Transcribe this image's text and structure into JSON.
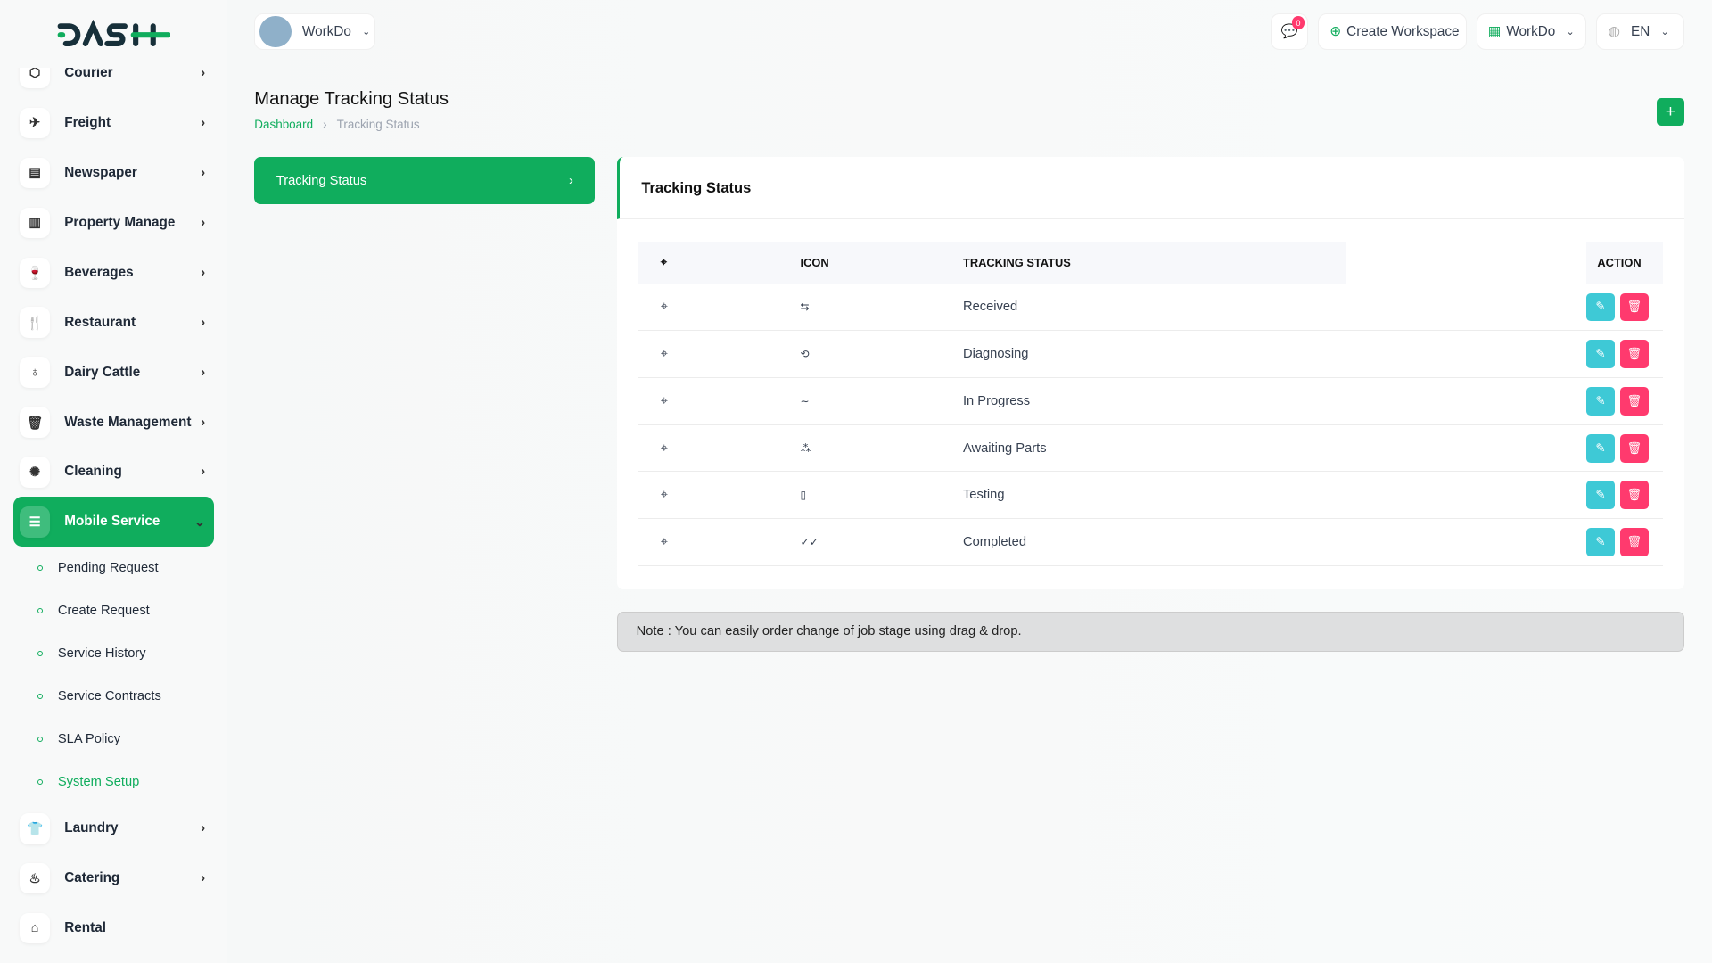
{
  "brand": {
    "logo": "DASH",
    "accent": "#10ad5d"
  },
  "header": {
    "workspace": "WorkDo",
    "notifications": "0",
    "create_workspace": "Create Workspace",
    "company": "WorkDo",
    "language": "EN"
  },
  "sidebar": {
    "items": [
      {
        "label": "Courier",
        "icon": "box-icon"
      },
      {
        "label": "Freight",
        "icon": "plane-icon"
      },
      {
        "label": "Newspaper",
        "icon": "newspaper-icon"
      },
      {
        "label": "Property Manage",
        "icon": "building-icon"
      },
      {
        "label": "Beverages",
        "icon": "glass-icon"
      },
      {
        "label": "Restaurant",
        "icon": "utensils-icon"
      },
      {
        "label": "Dairy Cattle",
        "icon": "bottle-icon"
      },
      {
        "label": "Waste Management",
        "icon": "trash-icon"
      },
      {
        "label": "Cleaning",
        "icon": "sparkle-icon"
      },
      {
        "label": "Mobile Service",
        "icon": "menu-icon",
        "active": true
      }
    ],
    "subitems": [
      "Pending Request",
      "Create Request",
      "Service History",
      "Service Contracts",
      "SLA Policy",
      "System Setup"
    ],
    "after": [
      {
        "label": "Laundry",
        "icon": "shirt-icon"
      },
      {
        "label": "Catering",
        "icon": "dish-icon"
      },
      {
        "label": "Rental",
        "icon": "home-icon"
      }
    ]
  },
  "page": {
    "title": "Manage Tracking Status",
    "breadcrumb": [
      "Dashboard",
      "Tracking Status"
    ],
    "tab": "Tracking Status"
  },
  "card": {
    "title": "Tracking Status",
    "columns": [
      "ICON",
      "TRACKING STATUS",
      "ACTION"
    ],
    "rows": [
      {
        "icon": "⇆",
        "status": "Received"
      },
      {
        "icon": "⟲",
        "status": "Diagnosing"
      },
      {
        "icon": "∼",
        "status": "In Progress"
      },
      {
        "icon": "⁂",
        "status": "Awaiting Parts"
      },
      {
        "icon": "▯",
        "status": "Testing"
      },
      {
        "icon": "✓✓",
        "status": "Completed"
      }
    ]
  },
  "note": "Note : You can easily order change of job stage using drag & drop.",
  "colors": {
    "edit": "#3ec9d6",
    "delete": "#ff3a6e"
  }
}
